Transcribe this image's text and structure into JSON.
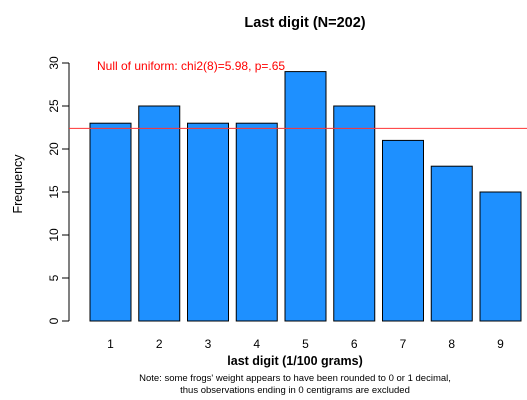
{
  "chart_data": {
    "type": "bar",
    "title": "Last digit (N=202)",
    "xlabel": "last digit (1/100 grams)",
    "ylabel": "Frequency",
    "categories": [
      "1",
      "2",
      "3",
      "4",
      "5",
      "6",
      "7",
      "8",
      "9"
    ],
    "values": [
      23,
      25,
      23,
      23,
      29,
      25,
      21,
      18,
      15
    ],
    "ylim": [
      0,
      30
    ],
    "yticks": [
      "0",
      "5",
      "10",
      "15",
      "20",
      "25",
      "30"
    ],
    "reference_line": {
      "value": 22.4,
      "color": "#ff3333"
    },
    "annotation": {
      "text": "Null of uniform: chi2(8)=5.98, p=.65",
      "color": "#ff0000"
    },
    "note_lines": [
      "Note: some frogs' weight appears to have been rounded to 0 or 1 decimal,",
      "thus observations ending in 0 centigrams are excluded"
    ],
    "bar_color": "#1e90ff",
    "grid": false,
    "legend": "none"
  }
}
